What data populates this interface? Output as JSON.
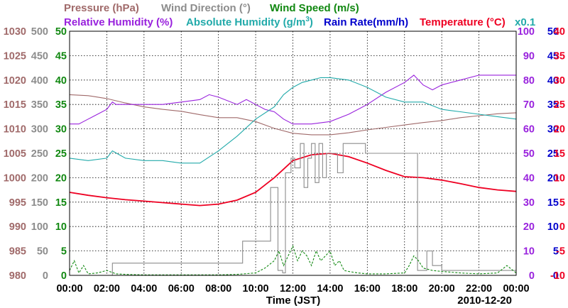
{
  "chart_data": {
    "type": "line",
    "date_label": "2010-12-20",
    "xlabel": "Time (JST)",
    "x_ticks": [
      "00:00",
      "02:00",
      "04:00",
      "06:00",
      "08:00",
      "10:00",
      "12:00",
      "14:00",
      "16:00",
      "18:00",
      "20:00",
      "22:00",
      "00:00"
    ],
    "x_range_hours": [
      0,
      24
    ],
    "grid": true,
    "legend": {
      "row1": [
        {
          "name": "Pressure (hPa)",
          "color": "#a06a6a"
        },
        {
          "name": "Wind Direction (°)",
          "color": "#8c8c8c"
        },
        {
          "name": "Wind Speed (m/s)",
          "color": "#118811"
        }
      ],
      "row2": [
        {
          "name": "Relative Humidity (%)",
          "color": "#9922dd"
        },
        {
          "name": "Absolute Humidity (g/m",
          "sup": "3",
          "close": ")",
          "color": "#22aaaa"
        },
        {
          "name": "Rain Rate(mm/h)",
          "color": "#0000cc"
        },
        {
          "name": "Temperature (°C)",
          "color": "#ee0022"
        }
      ],
      "scale_note": {
        "text": "x0.1",
        "color": "#22aaaa"
      }
    },
    "axes": {
      "pressure": {
        "color": "#a06a6a",
        "ticks": [
          "1030",
          "1025",
          "1020",
          "1015",
          "1010",
          "1005",
          "1000",
          "995",
          "990",
          "985",
          "980"
        ],
        "range": [
          980,
          1030
        ]
      },
      "wind_direction": {
        "color": "#8c8c8c",
        "ticks": [
          "500",
          "450",
          "400",
          "350",
          "300",
          "250",
          "200",
          "150",
          "100",
          "50",
          "0"
        ],
        "range": [
          0,
          500
        ]
      },
      "wind_speed": {
        "color": "#118811",
        "ticks": [
          "50",
          "45",
          "40",
          "35",
          "30",
          "25",
          "20",
          "15",
          "10",
          "5",
          "0"
        ],
        "range": [
          0,
          50
        ]
      },
      "humidity": {
        "color": "#9922dd",
        "ticks": [
          "100",
          "90",
          "80",
          "70",
          "60",
          "50",
          "40",
          "30",
          "20",
          "10",
          "0"
        ],
        "range": [
          0,
          100
        ]
      },
      "rain_rate": {
        "color": "#0000cc",
        "ticks": [
          "50",
          "45",
          "40",
          "35",
          "30",
          "25",
          "20",
          "15",
          "10",
          "5",
          "0"
        ],
        "range": [
          0,
          50
        ]
      },
      "temperature": {
        "color": "#ee0022",
        "ticks": [
          "40",
          "35",
          "30",
          "25",
          "20",
          "15",
          "10",
          "5",
          "0",
          "-5",
          "-10"
        ],
        "range": [
          -10,
          40
        ]
      }
    },
    "series": [
      {
        "name": "Pressure (hPa)",
        "axis": "pressure",
        "color": "#a06a6a",
        "x": [
          0,
          1,
          2,
          3,
          4,
          5,
          6,
          7,
          8,
          9,
          10,
          11,
          12,
          13,
          14,
          15,
          16,
          17,
          18,
          19,
          20,
          21,
          22,
          23,
          24
        ],
        "y": [
          1017,
          1016.8,
          1016.2,
          1015.3,
          1014.5,
          1014,
          1013.6,
          1012.9,
          1012.3,
          1012.3,
          1011.5,
          1010.1,
          1009.1,
          1008.8,
          1008.8,
          1009.2,
          1009.8,
          1010.3,
          1010.8,
          1011.3,
          1011.7,
          1012.3,
          1012.7,
          1013.1,
          1013.3
        ]
      },
      {
        "name": "Relative Humidity (%)",
        "axis": "humidity",
        "color": "#9922dd",
        "x": [
          0,
          0.5,
          1,
          1.5,
          2,
          2.3,
          2.5,
          3,
          4,
          5,
          6,
          7,
          7.5,
          8,
          9,
          9.5,
          10,
          10.5,
          11,
          11.5,
          12,
          13,
          14,
          15,
          16,
          17,
          18,
          18.5,
          19,
          19.5,
          20,
          21,
          22,
          23,
          24
        ],
        "y": [
          62,
          62,
          64,
          66,
          68,
          71,
          70,
          70,
          70,
          70,
          71,
          72,
          74,
          73,
          70,
          72,
          70,
          68,
          67,
          64,
          62,
          62,
          63,
          66,
          70,
          75,
          79,
          82,
          78,
          76,
          78,
          80,
          82,
          82,
          82
        ]
      },
      {
        "name": "Absolute Humidity (g/m3)",
        "axis": "humidity",
        "color": "#22aaaa",
        "x": [
          0,
          1,
          2,
          2.3,
          3,
          4,
          5,
          6,
          7,
          8,
          9,
          10,
          11,
          11.5,
          12,
          12.5,
          13,
          13.5,
          14,
          15,
          16,
          17,
          18,
          19,
          20,
          21,
          22,
          23,
          24
        ],
        "y": [
          48,
          47,
          48,
          51,
          48,
          47,
          47,
          46,
          46,
          51,
          57,
          64,
          69,
          74,
          77,
          79,
          80,
          81,
          81,
          80,
          77,
          73,
          71,
          71,
          68,
          67,
          66,
          65,
          64
        ]
      },
      {
        "name": "Temperature (°C)",
        "axis": "temperature",
        "color": "#ee0022",
        "x": [
          0,
          1,
          2,
          3,
          4,
          5,
          6,
          7,
          8,
          9,
          10,
          11,
          12,
          13,
          14,
          15,
          16,
          17,
          18,
          19,
          20,
          21,
          22,
          23,
          24
        ],
        "y": [
          7,
          6.4,
          5.9,
          5.5,
          5.2,
          4.9,
          4.6,
          4.3,
          4.6,
          5.4,
          7,
          10,
          13.5,
          14.7,
          15,
          14.3,
          13,
          11.5,
          10.2,
          10,
          9.5,
          8.8,
          8,
          7.5,
          7.2
        ]
      },
      {
        "name": "Wind Direction (°)",
        "axis": "wind_direction",
        "color": "#8c8c8c",
        "step": true,
        "x": [
          0,
          2.3,
          9.3,
          10.8,
          11.2,
          11.45,
          11.6,
          11.9,
          12.1,
          12.4,
          12.6,
          12.8,
          13,
          13.2,
          13.4,
          13.6,
          13.8,
          14.1,
          14.4,
          14.7,
          15,
          15.9,
          16.5,
          17.5,
          18.55,
          18.7,
          19.2,
          19.5,
          20,
          22,
          24
        ],
        "y": [
          0,
          25,
          70,
          180,
          10,
          5,
          210,
          240,
          220,
          270,
          180,
          240,
          270,
          190,
          270,
          200,
          250,
          250,
          210,
          270,
          270,
          250,
          250,
          250,
          250,
          10,
          50,
          20,
          10,
          10,
          10
        ]
      },
      {
        "name": "Wind Speed (m/s)",
        "axis": "wind_speed",
        "color": "#118811",
        "dashed": true,
        "x": [
          0,
          0.25,
          0.5,
          0.75,
          1,
          1.5,
          2,
          2.5,
          3,
          4,
          5,
          6,
          7,
          8,
          9,
          10,
          10.5,
          11,
          11.25,
          11.5,
          11.75,
          12,
          12.25,
          12.5,
          12.75,
          13,
          13.25,
          13.5,
          13.75,
          14,
          14.25,
          14.5,
          14.75,
          15,
          15.5,
          16,
          17,
          18,
          18.25,
          18.5,
          18.75,
          19,
          19.5,
          20,
          21,
          22,
          23,
          23.5,
          24
        ],
        "y": [
          1,
          3,
          0.5,
          2,
          0.3,
          0.5,
          1,
          0.3,
          0.2,
          0.1,
          0.1,
          0.1,
          0.1,
          0.1,
          0.2,
          0.5,
          1.5,
          3,
          5,
          2,
          4,
          6,
          3,
          5,
          4,
          2,
          5,
          3,
          4,
          5,
          2,
          3,
          1,
          0.8,
          0.5,
          0.3,
          0.3,
          0.5,
          2,
          4,
          3,
          1.5,
          1,
          0.8,
          0.5,
          0.3,
          0.5,
          2,
          0.5
        ]
      },
      {
        "name": "Rain Rate(mm/h)",
        "axis": "rain_rate",
        "color": "#0000cc",
        "x": [
          0,
          24
        ],
        "y": [
          0,
          0
        ]
      }
    ]
  }
}
